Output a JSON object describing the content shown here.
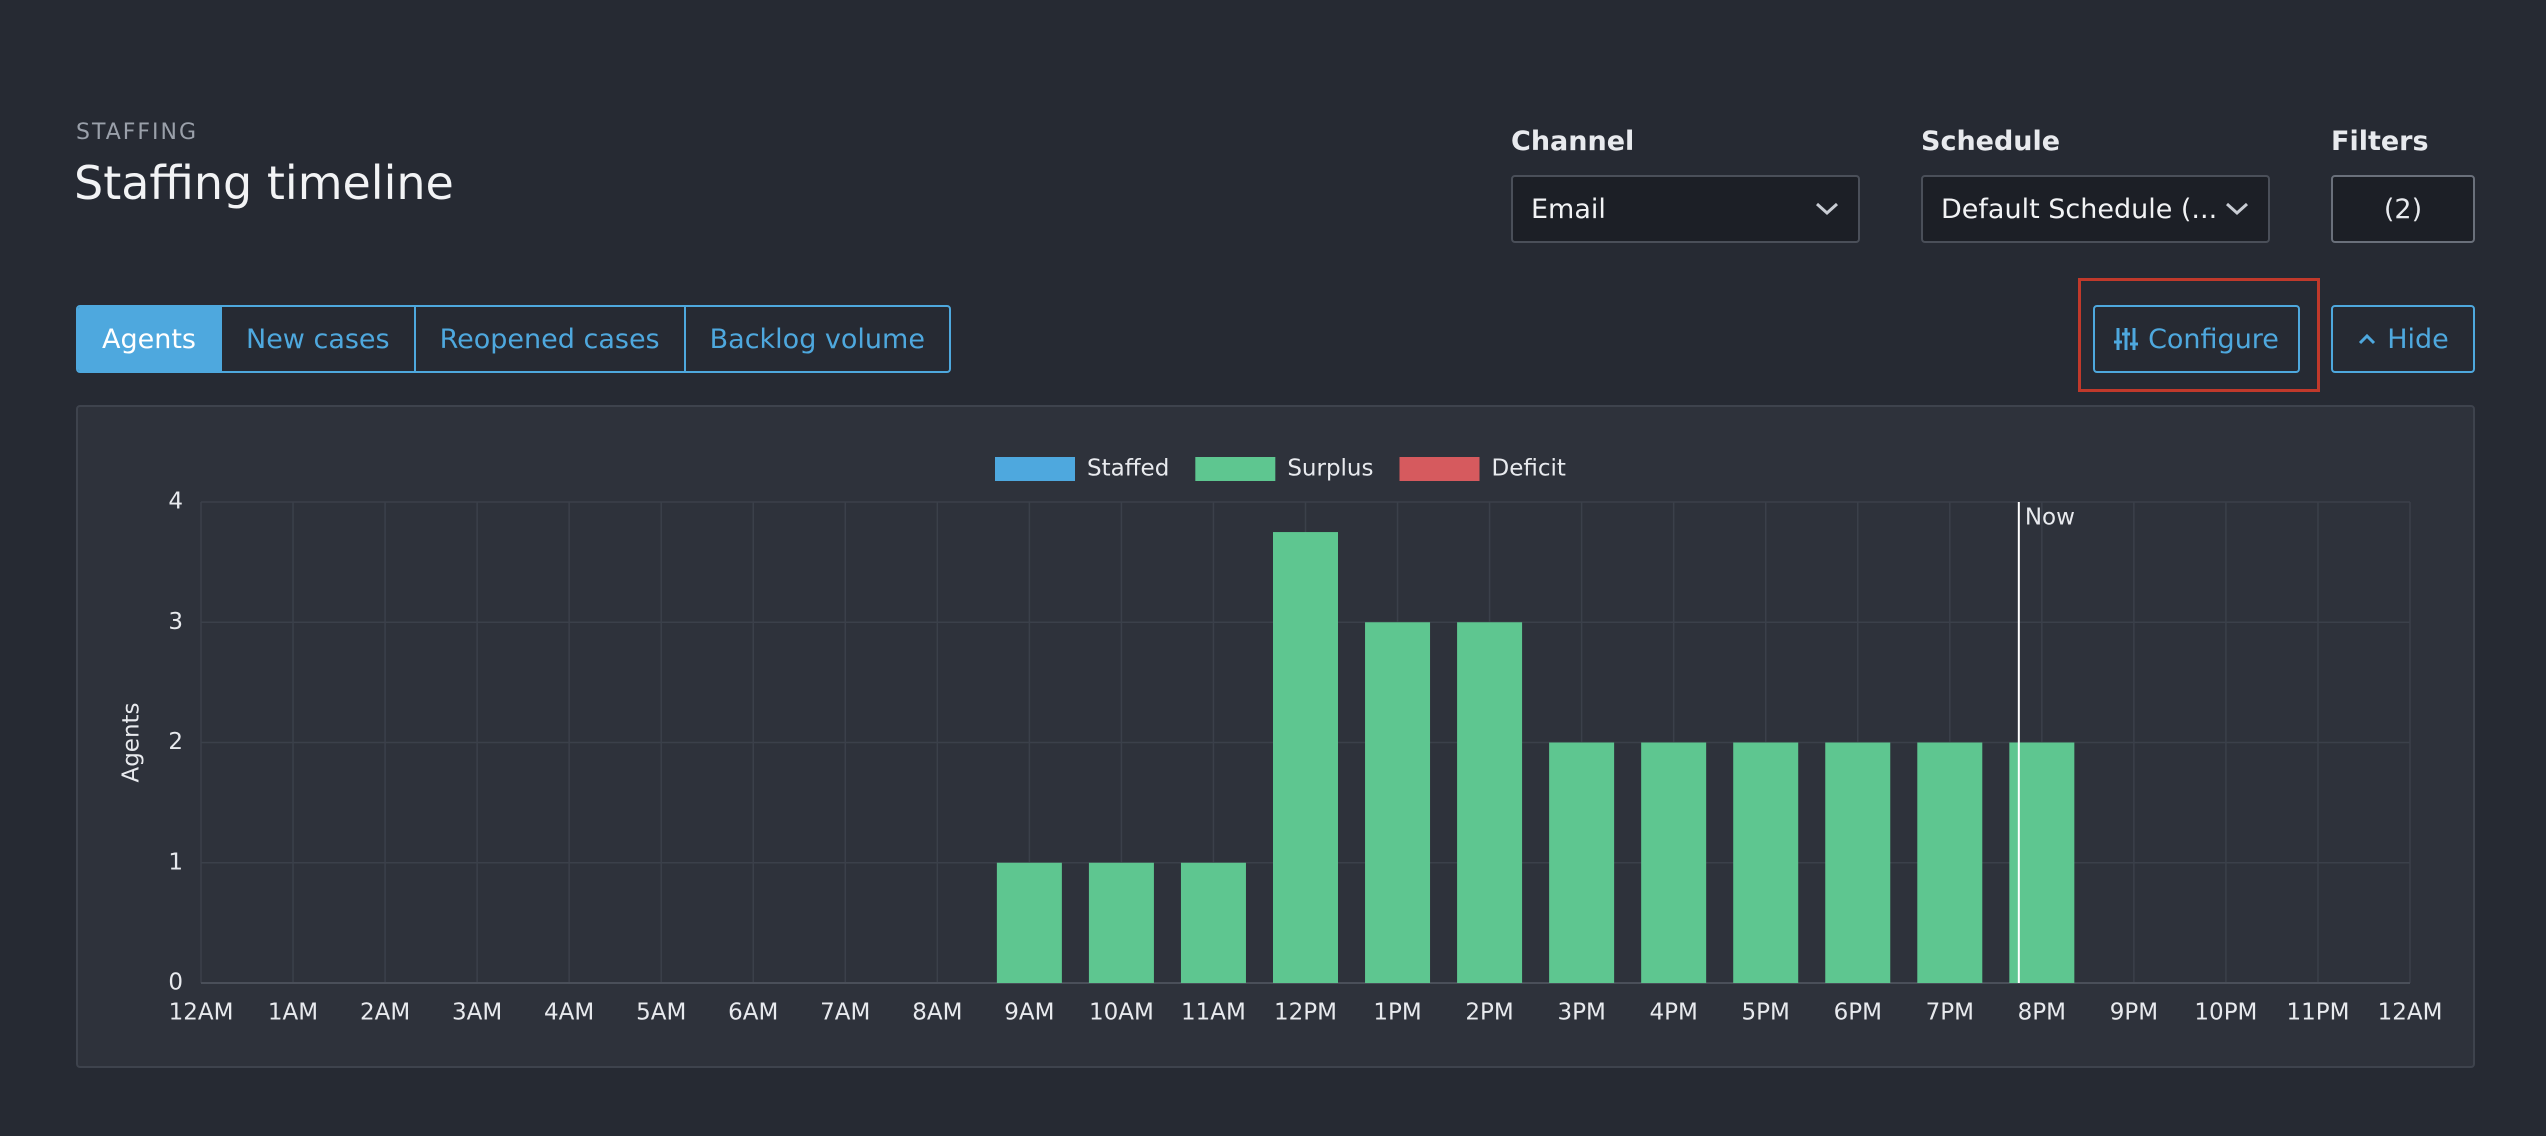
{
  "header": {
    "eyebrow": "STAFFING",
    "title": "Staffing timeline"
  },
  "controls": {
    "channel": {
      "label": "Channel",
      "value": "Email"
    },
    "schedule": {
      "label": "Schedule",
      "value": "Default Schedule (..."
    },
    "filters": {
      "label": "Filters",
      "value": "(2)"
    }
  },
  "tabs": [
    "Agents",
    "New cases",
    "Reopened cases",
    "Backlog volume"
  ],
  "active_tab": 0,
  "buttons": {
    "configure": "Configure",
    "hide": "Hide"
  },
  "chart_data": {
    "type": "bar",
    "stacked": true,
    "y_label": "Agents",
    "categories": [
      "12AM",
      "1AM",
      "2AM",
      "3AM",
      "4AM",
      "5AM",
      "6AM",
      "7AM",
      "8AM",
      "9AM",
      "10AM",
      "11AM",
      "12PM",
      "1PM",
      "2PM",
      "3PM",
      "4PM",
      "5PM",
      "6PM",
      "7PM",
      "8PM",
      "9PM",
      "10PM",
      "11PM",
      "12AM"
    ],
    "series": [
      {
        "name": "Staffed",
        "color": "#4ea8de",
        "values": [
          0,
          0,
          0,
          0,
          0,
          0,
          0,
          0,
          0,
          0,
          0,
          0,
          0,
          0,
          0,
          0,
          0,
          0,
          0,
          0,
          0,
          0,
          0,
          0,
          0
        ]
      },
      {
        "name": "Surplus",
        "color": "#5ec690",
        "values": [
          0,
          0,
          0,
          0,
          0,
          0,
          0,
          0,
          0,
          1,
          1,
          1,
          3.75,
          3,
          3,
          2,
          2,
          2,
          2,
          2,
          2,
          0,
          0,
          0,
          0
        ]
      },
      {
        "name": "Deficit",
        "color": "#d65a5e",
        "values": [
          0,
          0,
          0,
          0,
          0,
          0,
          0,
          0,
          0,
          0,
          0,
          0,
          0,
          0,
          0,
          0,
          0,
          0,
          0,
          0,
          0,
          0,
          0,
          0,
          0
        ]
      }
    ],
    "ylim": [
      0,
      4
    ],
    "yticks": [
      0,
      1,
      2,
      3,
      4
    ],
    "grid": true,
    "legend": "top",
    "annotation": {
      "label": "Now",
      "x": 19.75
    }
  }
}
